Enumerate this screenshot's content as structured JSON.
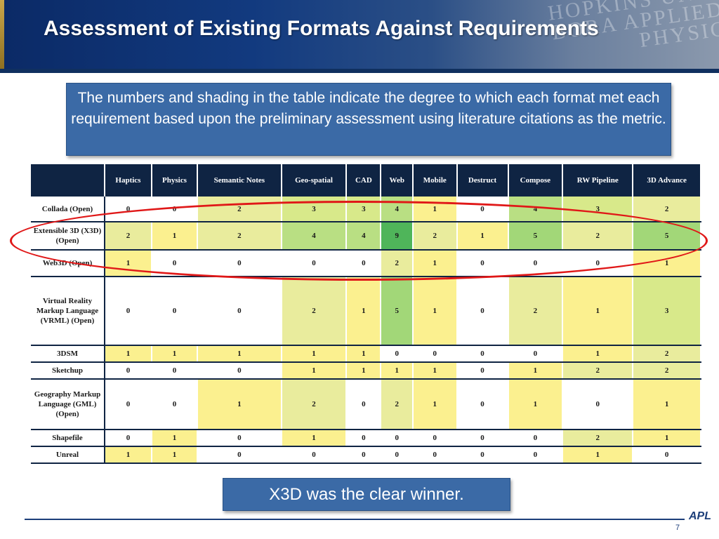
{
  "slide": {
    "title": "Assessment of Existing Formats Against Requirements",
    "callout_top": "The numbers and shading in the table indicate the degree to which each format met each requirement based upon the preliminary assessment using literature citations as the metric.",
    "callout_bottom": "X3D was the clear winner.",
    "page_number": "7",
    "logo_text": "APL",
    "banner_watermark": "HOPKINS UNIV BORA APPLIED PHYSIC"
  },
  "table": {
    "columns": [
      "",
      "Haptics",
      "Physics",
      "Semantic Notes",
      "Geo-spatial",
      "CAD",
      "Web",
      "Mobile",
      "Destruct",
      "Compose",
      "RW Pipeline",
      "3D Advance"
    ],
    "rows": [
      {
        "label": "Collada (Open)",
        "values": [
          "0",
          "0",
          "2",
          "3",
          "3",
          "4",
          "1",
          "0",
          "4",
          "3",
          "2"
        ]
      },
      {
        "label": "Extensible 3D (X3D) (Open)",
        "values": [
          "2",
          "1",
          "2",
          "4",
          "4",
          "9",
          "2",
          "1",
          "5",
          "2",
          "5"
        ]
      },
      {
        "label": "Web3D (Open)",
        "values": [
          "1",
          "0",
          "0",
          "0",
          "0",
          "2",
          "1",
          "0",
          "0",
          "0",
          "1"
        ]
      },
      {
        "label": "Virtual Reality Markup Language (VRML) (Open)",
        "values": [
          "0",
          "0",
          "0",
          "2",
          "1",
          "5",
          "1",
          "0",
          "2",
          "1",
          "3"
        ]
      },
      {
        "label": "3DSM",
        "values": [
          "1",
          "1",
          "1",
          "1",
          "1",
          "0",
          "0",
          "0",
          "0",
          "1",
          "2"
        ]
      },
      {
        "label": "Sketchup",
        "values": [
          "0",
          "0",
          "0",
          "1",
          "1",
          "1",
          "1",
          "0",
          "1",
          "2",
          "2"
        ]
      },
      {
        "label": "Geography Markup Language (GML) (Open)",
        "values": [
          "0",
          "0",
          "1",
          "2",
          "0",
          "2",
          "1",
          "0",
          "1",
          "0",
          "1"
        ]
      },
      {
        "label": "Shapefile",
        "values": [
          "0",
          "1",
          "0",
          "1",
          "0",
          "0",
          "0",
          "0",
          "0",
          "2",
          "1"
        ]
      },
      {
        "label": "Unreal",
        "values": [
          "1",
          "1",
          "0",
          "0",
          "0",
          "0",
          "0",
          "0",
          "0",
          "1",
          "0"
        ]
      }
    ],
    "row_heights": [],
    "highlighted_row": "Extensible 3D (X3D) (Open)",
    "highlight_color": "#e01818"
  }
}
